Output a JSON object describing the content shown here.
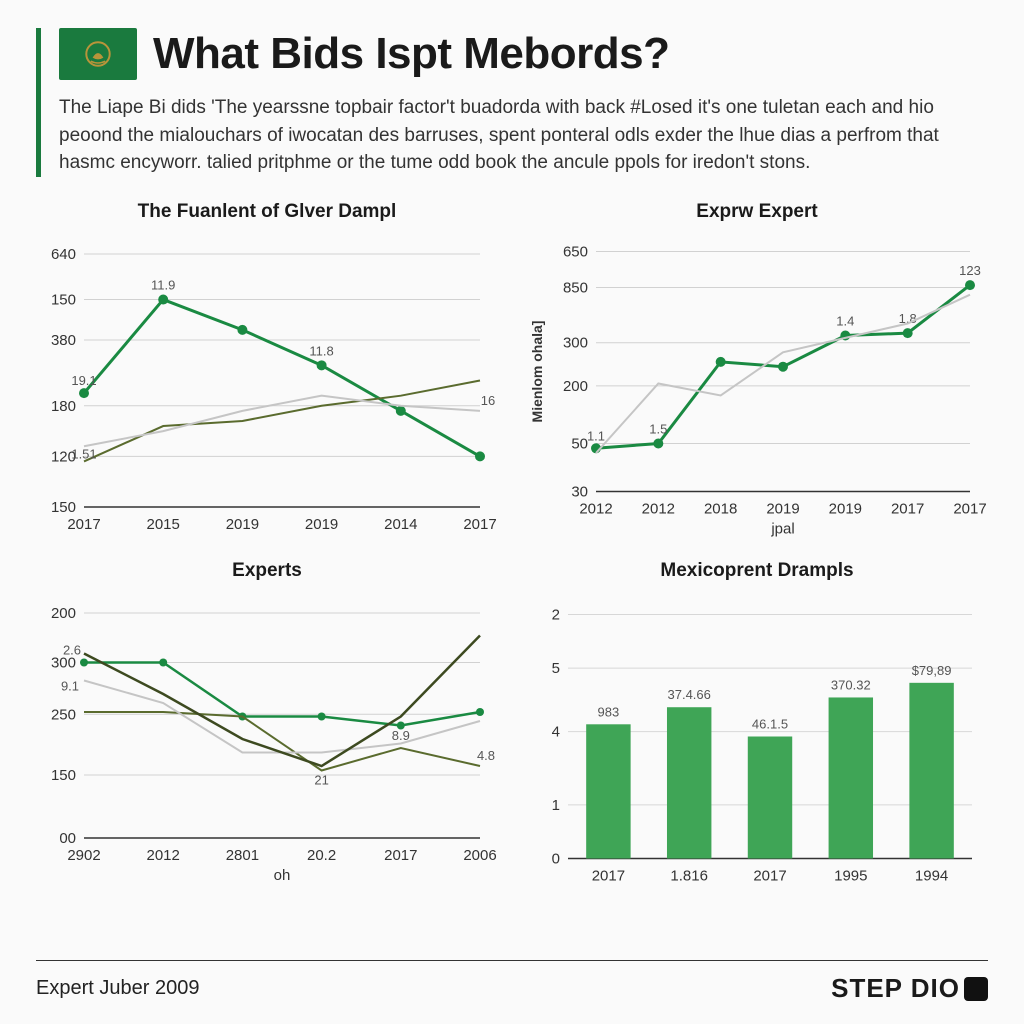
{
  "header": {
    "title": "What Bids Ispt Mebords?",
    "subtitle": "The Liape Bi dids 'The yearssne topbair factor't buadorda with back #Losed it's one tuletan each and hio peoond the mialouchars of iwocatan des barruses, spent ponteral odls exder the lhue dias a perfrom that hasmc encyworr. talied pritphme or the tume odd book the ancule ppols for iredon't stons.",
    "accent_color": "#1a7a3e",
    "flag_bg": "#1a7a3e",
    "flag_emblem_color": "#b8943a"
  },
  "colors": {
    "primary_green": "#1a8a42",
    "olive": "#5a6b2e",
    "light_gray": "#b8b8b8",
    "dark_olive": "#3d4a20",
    "bar_green": "#3fa556",
    "text": "#1a1a1a",
    "grid": "#999999",
    "bg": "#fafafa"
  },
  "fontsize": {
    "title": 44,
    "subtitle": 19,
    "panel_title": 19,
    "axis": 15,
    "axis_sm": 13
  },
  "chart1": {
    "type": "line",
    "title": "The Fuanlent of Glver Dampl",
    "x_labels": [
      "2017",
      "2015",
      "2019",
      "2019",
      "2014",
      "2017"
    ],
    "y_ticks": [
      "640",
      "150",
      "380",
      "180",
      "120",
      "150"
    ],
    "y_positions": [
      0,
      0.18,
      0.34,
      0.6,
      0.8,
      1.0
    ],
    "series": [
      {
        "color": "#1a8a42",
        "width": 3,
        "markers": true,
        "marker_size": 5,
        "points": [
          [
            0,
            0.55
          ],
          [
            1,
            0.18
          ],
          [
            2,
            0.3
          ],
          [
            3,
            0.44
          ],
          [
            4,
            0.62
          ],
          [
            5,
            0.8
          ]
        ],
        "labels": [
          {
            "i": 0,
            "t": "19.1",
            "dy": -8
          },
          {
            "i": 1,
            "t": "11.9",
            "dy": -10
          },
          {
            "i": 3,
            "t": "11.8",
            "dy": -10
          }
        ]
      },
      {
        "color": "#5a6b2e",
        "width": 2,
        "markers": false,
        "points": [
          [
            0,
            0.82
          ],
          [
            1,
            0.68
          ],
          [
            2,
            0.66
          ],
          [
            3,
            0.6
          ],
          [
            4,
            0.56
          ],
          [
            5,
            0.5
          ]
        ]
      },
      {
        "color": "#c5c5c5",
        "width": 2,
        "markers": false,
        "points": [
          [
            0,
            0.76
          ],
          [
            1,
            0.7
          ],
          [
            2,
            0.62
          ],
          [
            3,
            0.56
          ],
          [
            4,
            0.6
          ],
          [
            5,
            0.62
          ]
        ],
        "labels": [
          {
            "i": 0,
            "t": "1.51",
            "dy": 12
          },
          {
            "i": 5,
            "t": "16",
            "dy": -6,
            "dx": 8
          }
        ]
      }
    ]
  },
  "chart2": {
    "type": "line",
    "title": "Exprw Expert",
    "x_labels": [
      "2012",
      "2012",
      "2018",
      "2019",
      "2019",
      "2017",
      "2017"
    ],
    "x_axis_label": "jpal",
    "y_ticks": [
      "650",
      "850",
      "300",
      "200",
      "50",
      "30"
    ],
    "y_positions": [
      0,
      0.15,
      0.38,
      0.56,
      0.8,
      1.0
    ],
    "y_axis_title": "Mienlom ohala]",
    "series": [
      {
        "color": "#1a8a42",
        "width": 3,
        "markers": true,
        "marker_size": 5,
        "points": [
          [
            0,
            0.82
          ],
          [
            1,
            0.8
          ],
          [
            2,
            0.46
          ],
          [
            3,
            0.48
          ],
          [
            4,
            0.35
          ],
          [
            5,
            0.34
          ],
          [
            6,
            0.14
          ]
        ],
        "labels": [
          {
            "i": 0,
            "t": "1.1",
            "dy": -8
          },
          {
            "i": 1,
            "t": "1.5",
            "dy": -10
          },
          {
            "i": 4,
            "t": "1.4",
            "dy": -10
          },
          {
            "i": 5,
            "t": "1.8",
            "dy": -10
          },
          {
            "i": 6,
            "t": "123",
            "dy": -10
          }
        ]
      },
      {
        "color": "#c5c5c5",
        "width": 2,
        "markers": false,
        "points": [
          [
            0,
            0.84
          ],
          [
            1,
            0.55
          ],
          [
            2,
            0.6
          ],
          [
            3,
            0.42
          ],
          [
            4,
            0.36
          ],
          [
            5,
            0.3
          ],
          [
            6,
            0.18
          ]
        ]
      }
    ]
  },
  "chart3": {
    "type": "line",
    "title": "Experts",
    "x_labels": [
      "2902",
      "2012",
      "2801",
      "20.2",
      "2017",
      "2006"
    ],
    "x_axis_label": "oh",
    "y_ticks": [
      "200",
      "300",
      "250",
      "150",
      "00"
    ],
    "y_positions": [
      0,
      0.22,
      0.45,
      0.72,
      1.0
    ],
    "series": [
      {
        "color": "#1a8a42",
        "width": 2.5,
        "markers": true,
        "marker_size": 4,
        "points": [
          [
            0,
            0.22
          ],
          [
            1,
            0.22
          ],
          [
            2,
            0.46
          ],
          [
            3,
            0.46
          ],
          [
            4,
            0.5
          ],
          [
            5,
            0.44
          ]
        ],
        "labels": [
          {
            "i": 0,
            "t": "2.6",
            "dy": -8,
            "dx": -12
          }
        ]
      },
      {
        "color": "#5a6b2e",
        "width": 2,
        "markers": false,
        "points": [
          [
            0,
            0.44
          ],
          [
            1,
            0.44
          ],
          [
            2,
            0.46
          ],
          [
            3,
            0.7
          ],
          [
            4,
            0.6
          ],
          [
            5,
            0.68
          ]
        ],
        "labels": [
          {
            "i": 3,
            "t": "21",
            "dy": 14
          },
          {
            "i": 4,
            "t": "8.9",
            "dy": -8
          },
          {
            "i": 5,
            "t": "4.8",
            "dy": -6,
            "dx": 6
          }
        ]
      },
      {
        "color": "#c5c5c5",
        "width": 2,
        "markers": false,
        "points": [
          [
            0,
            0.3
          ],
          [
            1,
            0.4
          ],
          [
            2,
            0.62
          ],
          [
            3,
            0.62
          ],
          [
            4,
            0.58
          ],
          [
            5,
            0.48
          ]
        ],
        "labels": [
          {
            "i": 0,
            "t": "9.1",
            "dy": 10,
            "dx": -14
          }
        ]
      },
      {
        "color": "#3d4a20",
        "width": 2.5,
        "markers": false,
        "points": [
          [
            0,
            0.18
          ],
          [
            1,
            0.36
          ],
          [
            2,
            0.56
          ],
          [
            3,
            0.68
          ],
          [
            4,
            0.46
          ],
          [
            5,
            0.1
          ]
        ]
      }
    ]
  },
  "chart4": {
    "type": "bar",
    "title": "Mexicoprent Drampls",
    "x_labels": [
      "2017",
      "1.816",
      "2017",
      "1995",
      "1994"
    ],
    "y_ticks": [
      "2",
      "5",
      "4",
      "1",
      "0"
    ],
    "y_positions": [
      0,
      0.22,
      0.48,
      0.78,
      1.0
    ],
    "bar_color": "#3fa556",
    "bar_width": 0.55,
    "bars": [
      {
        "h": 0.55,
        "label": "983"
      },
      {
        "h": 0.62,
        "label": "37.4.66"
      },
      {
        "h": 0.5,
        "label": "46.1.5"
      },
      {
        "h": 0.66,
        "label": "370.32"
      },
      {
        "h": 0.72,
        "label": "$79,89"
      }
    ]
  },
  "footer": {
    "left": "Expert Juber 2009",
    "right": "STEP DIO"
  }
}
